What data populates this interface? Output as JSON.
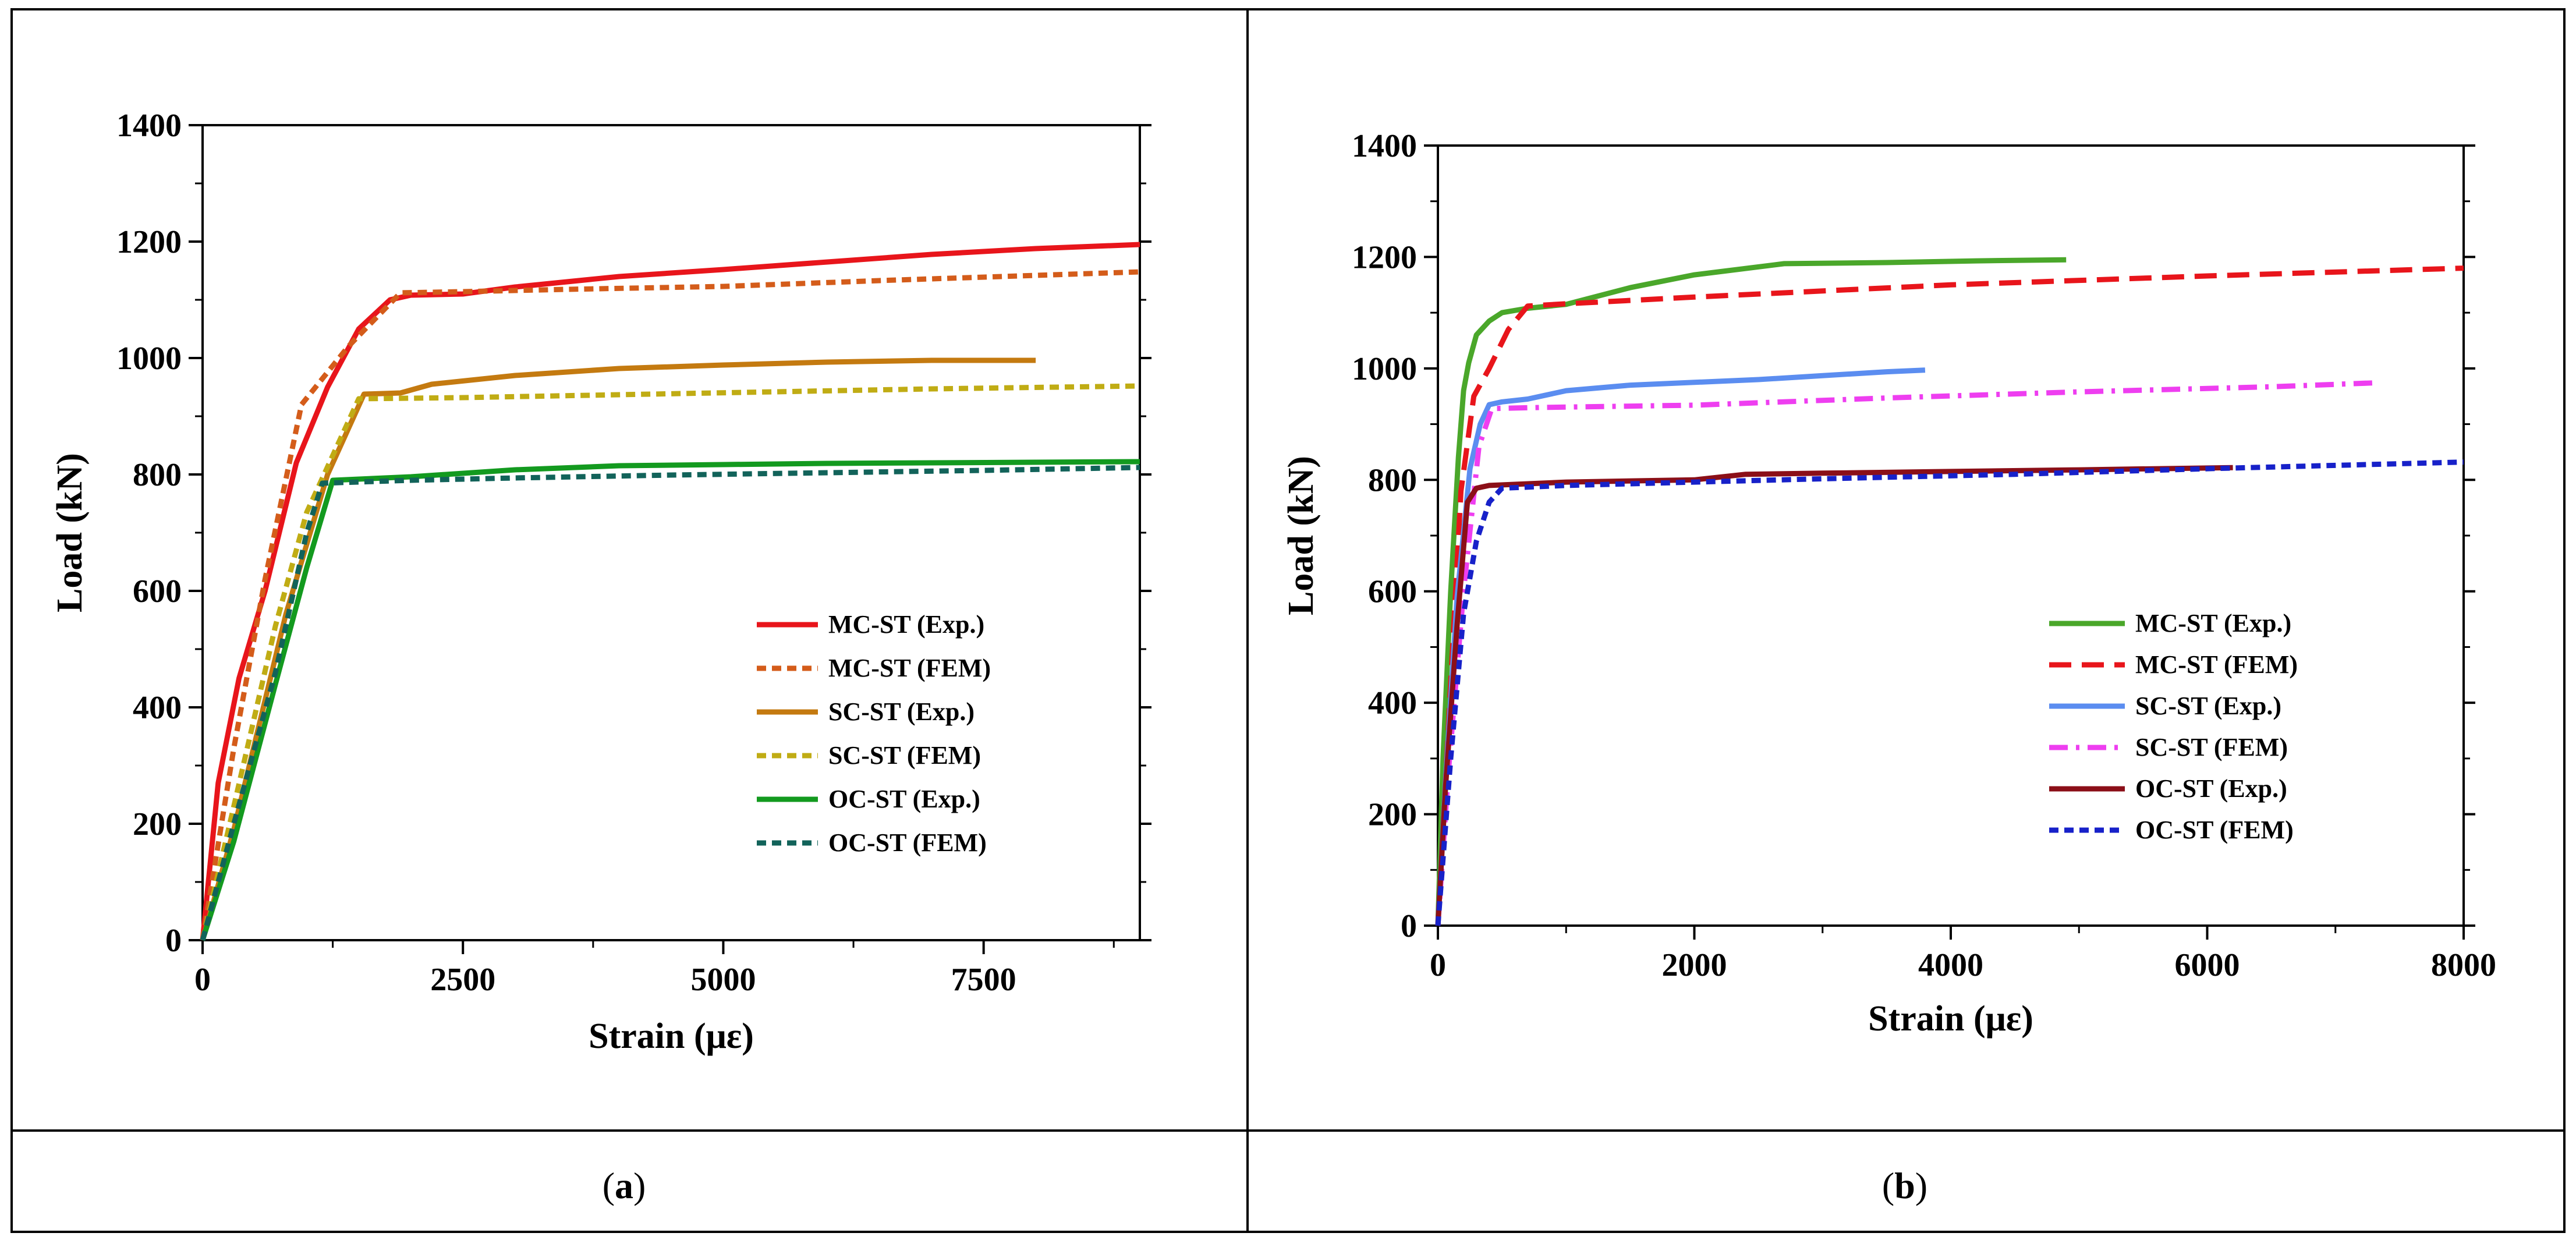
{
  "captions": [
    "a",
    "b"
  ],
  "chart_data": [
    {
      "type": "line",
      "panel": "a",
      "title": "",
      "xlabel": "Strain (με)",
      "ylabel": "Load (kN)",
      "xlim": [
        0,
        9000
      ],
      "ylim": [
        0,
        1400
      ],
      "xticks": [
        0,
        2500,
        5000,
        7500
      ],
      "yticks": [
        0,
        200,
        400,
        600,
        800,
        1000,
        1200,
        1400
      ],
      "legend_position": "center-right",
      "series": [
        {
          "name": "MC-ST (Exp.)",
          "color": "#e8151b",
          "dash": "solid",
          "x": [
            0,
            150,
            350,
            600,
            900,
            1200,
            1500,
            1800,
            2000,
            2500,
            3000,
            4000,
            5000,
            6000,
            7000,
            8000,
            9000
          ],
          "y": [
            0,
            270,
            450,
            600,
            820,
            950,
            1050,
            1100,
            1108,
            1110,
            1122,
            1140,
            1152,
            1165,
            1178,
            1188,
            1195
          ]
        },
        {
          "name": "MC-ST (FEM)",
          "color": "#d45c1a",
          "dash": "dashed",
          "x": [
            0,
            300,
            600,
            950,
            1400,
            1900,
            2500,
            3500,
            5000,
            6500,
            8000,
            9000
          ],
          "y": [
            0,
            330,
            620,
            920,
            1020,
            1112,
            1114,
            1118,
            1123,
            1133,
            1142,
            1148
          ]
        },
        {
          "name": "SC-ST (Exp.)",
          "color": "#c47a10",
          "dash": "solid",
          "x": [
            0,
            300,
            800,
            1200,
            1550,
            1900,
            2200,
            3000,
            4000,
            5000,
            6000,
            7000,
            8000
          ],
          "y": [
            0,
            190,
            560,
            800,
            938,
            940,
            955,
            970,
            982,
            988,
            993,
            996,
            996
          ]
        },
        {
          "name": "SC-ST (FEM)",
          "color": "#c0ac14",
          "dash": "dashed",
          "x": [
            0,
            300,
            700,
            1000,
            1500,
            2500,
            4000,
            5500,
            7000,
            9000
          ],
          "y": [
            0,
            230,
            540,
            735,
            930,
            932,
            937,
            942,
            947,
            952
          ]
        },
        {
          "name": "OC-ST (Exp.)",
          "color": "#139a1f",
          "dash": "solid",
          "x": [
            0,
            300,
            700,
            1000,
            1250,
            2000,
            3000,
            4000,
            5000,
            6000,
            7000,
            8000,
            9000
          ],
          "y": [
            0,
            170,
            440,
            640,
            790,
            796,
            808,
            815,
            817,
            819,
            820,
            821,
            822
          ]
        },
        {
          "name": "OC-ST (FEM)",
          "color": "#12635a",
          "dash": "dashed",
          "x": [
            0,
            300,
            700,
            1000,
            1150,
            2000,
            3000,
            4500,
            6000,
            7500,
            9000
          ],
          "y": [
            0,
            200,
            460,
            700,
            785,
            790,
            794,
            799,
            803,
            807,
            812
          ]
        }
      ]
    },
    {
      "type": "line",
      "panel": "b",
      "title": "",
      "xlabel": "Strain (με)",
      "ylabel": "Load (kN)",
      "xlim": [
        0,
        8000
      ],
      "ylim": [
        0,
        1400
      ],
      "xticks": [
        0,
        2000,
        4000,
        6000,
        8000
      ],
      "yticks": [
        0,
        200,
        400,
        600,
        800,
        1000,
        1200,
        1400
      ],
      "legend_position": "center-right",
      "series": [
        {
          "name": "MC-ST (Exp.)",
          "color": "#4aa72a",
          "dash": "solid",
          "x": [
            0,
            40,
            100,
            160,
            200,
            240,
            300,
            400,
            500,
            700,
            1000,
            1500,
            2000,
            2700,
            3500,
            4200,
            4900
          ],
          "y": [
            0,
            300,
            600,
            840,
            960,
            1010,
            1060,
            1085,
            1100,
            1108,
            1115,
            1145,
            1168,
            1188,
            1190,
            1193,
            1195
          ]
        },
        {
          "name": "MC-ST (FEM)",
          "color": "#e8151b",
          "dash": "longdash",
          "x": [
            0,
            80,
            180,
            280,
            400,
            550,
            700,
            1000,
            2000,
            4000,
            6000,
            8000
          ],
          "y": [
            0,
            350,
            780,
            950,
            1000,
            1070,
            1112,
            1116,
            1128,
            1150,
            1166,
            1180
          ]
        },
        {
          "name": "SC-ST (Exp.)",
          "color": "#5b8df0",
          "dash": "solid",
          "x": [
            0,
            60,
            150,
            250,
            330,
            400,
            500,
            700,
            1000,
            1500,
            2000,
            2500,
            3000,
            3500,
            3800
          ],
          "y": [
            0,
            260,
            590,
            820,
            900,
            935,
            940,
            945,
            960,
            970,
            975,
            980,
            987,
            994,
            997
          ]
        },
        {
          "name": "SC-ST (FEM)",
          "color": "#ee3ef0",
          "dash": "dashdot",
          "x": [
            0,
            80,
            200,
            320,
            420,
            800,
            2000,
            3500,
            5000,
            6500,
            7300
          ],
          "y": [
            0,
            270,
            600,
            860,
            928,
            930,
            934,
            947,
            958,
            967,
            974
          ]
        },
        {
          "name": "OC-ST (Exp.)",
          "color": "#8b0f18",
          "dash": "solid",
          "x": [
            0,
            60,
            150,
            230,
            300,
            400,
            1000,
            2000,
            2400,
            3000,
            4000,
            5000,
            6200
          ],
          "y": [
            0,
            250,
            540,
            760,
            785,
            790,
            796,
            800,
            810,
            812,
            815,
            818,
            822
          ]
        },
        {
          "name": "OC-ST (FEM)",
          "color": "#1721c9",
          "dash": "dashed",
          "x": [
            0,
            100,
            200,
            300,
            400,
            500,
            1000,
            2000,
            3000,
            4500,
            6000,
            8000
          ],
          "y": [
            0,
            300,
            560,
            690,
            760,
            785,
            790,
            796,
            802,
            810,
            820,
            832
          ]
        }
      ]
    }
  ]
}
